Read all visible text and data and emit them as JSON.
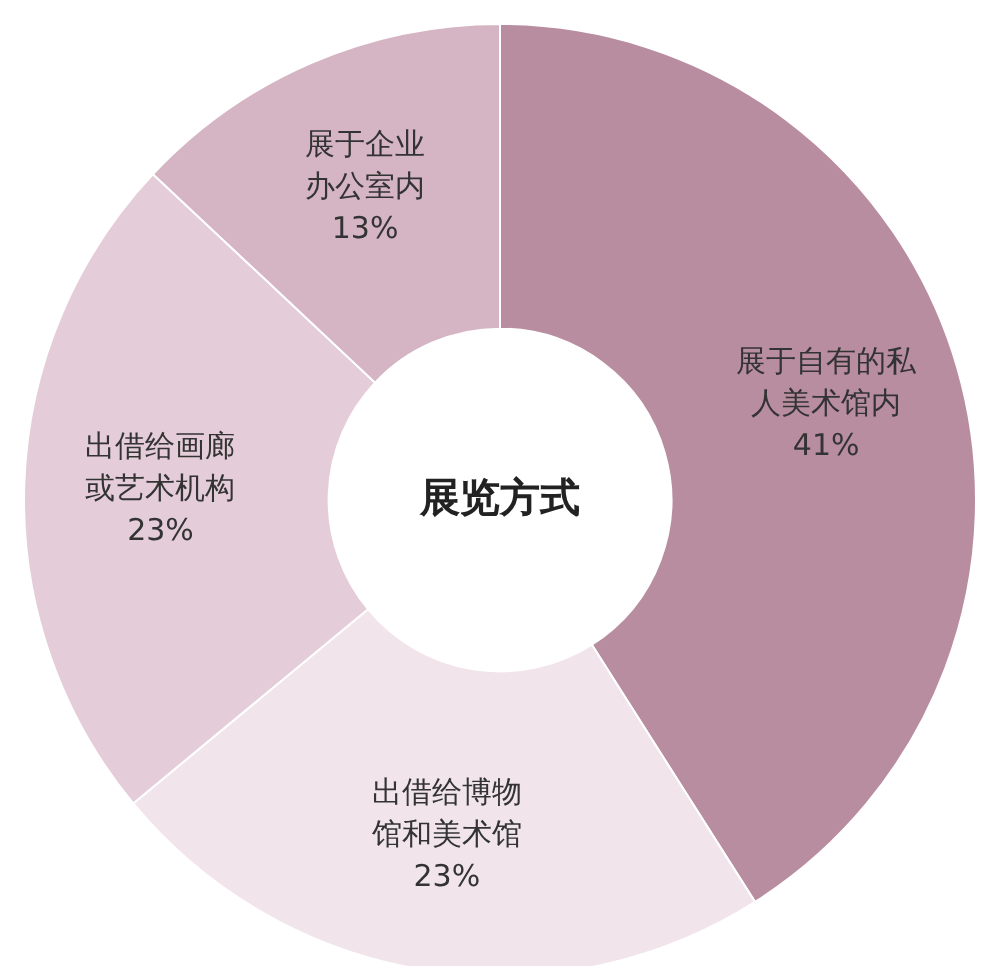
{
  "chart_data": {
    "type": "donut",
    "title": "展览方式",
    "categories": [
      "展于自有的私人美术馆内",
      "出借给博物馆和美术馆",
      "出借给画廊或艺术机构",
      "展于企业办公室内"
    ],
    "values": [
      41,
      23,
      23,
      13
    ],
    "colors": [
      "#b98da0",
      "#f1e5eb",
      "#e4cdd8",
      "#d5b4c3"
    ],
    "value_labels": [
      "41%",
      "23%",
      "23%",
      "13%"
    ]
  }
}
